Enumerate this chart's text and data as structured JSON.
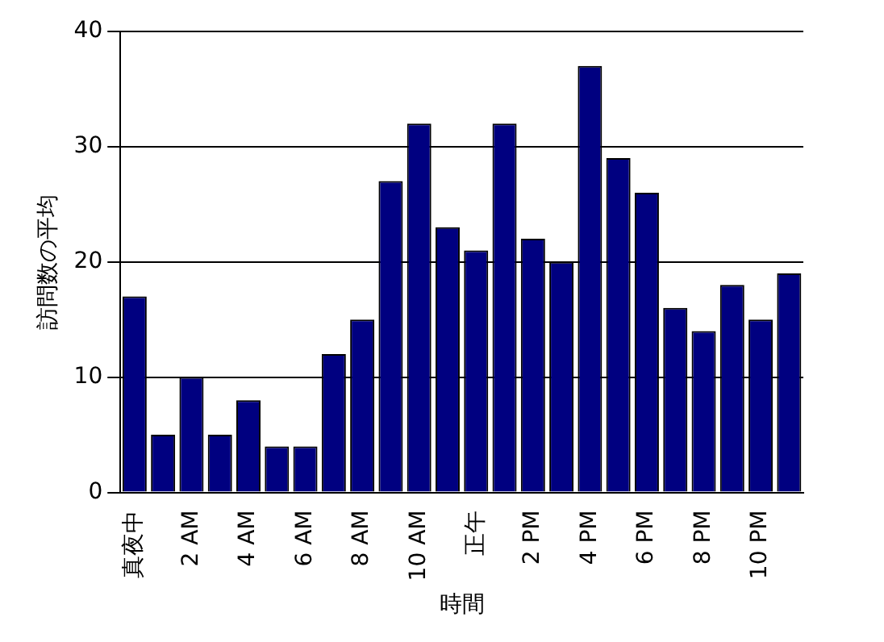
{
  "chart_data": {
    "type": "bar",
    "xlabel": "時間",
    "ylabel": "訪問数の平均",
    "categories": [
      "真夜中",
      null,
      "2 AM",
      null,
      "4 AM",
      null,
      "6 AM",
      null,
      "8 AM",
      null,
      "10 AM",
      null,
      "正午",
      null,
      "2 PM",
      null,
      "4 PM",
      null,
      "6 PM",
      null,
      "8 PM",
      null,
      "10 PM",
      null
    ],
    "values": [
      17,
      5,
      10,
      5,
      8,
      4,
      4,
      12,
      15,
      27,
      32,
      23,
      21,
      32,
      22,
      20,
      37,
      29,
      26,
      16,
      14,
      18,
      15,
      19
    ],
    "color": "#000080",
    "ylim": [
      0,
      40
    ],
    "yticks": [
      0,
      10,
      20,
      30,
      40
    ],
    "grid": "y",
    "legend": false
  }
}
